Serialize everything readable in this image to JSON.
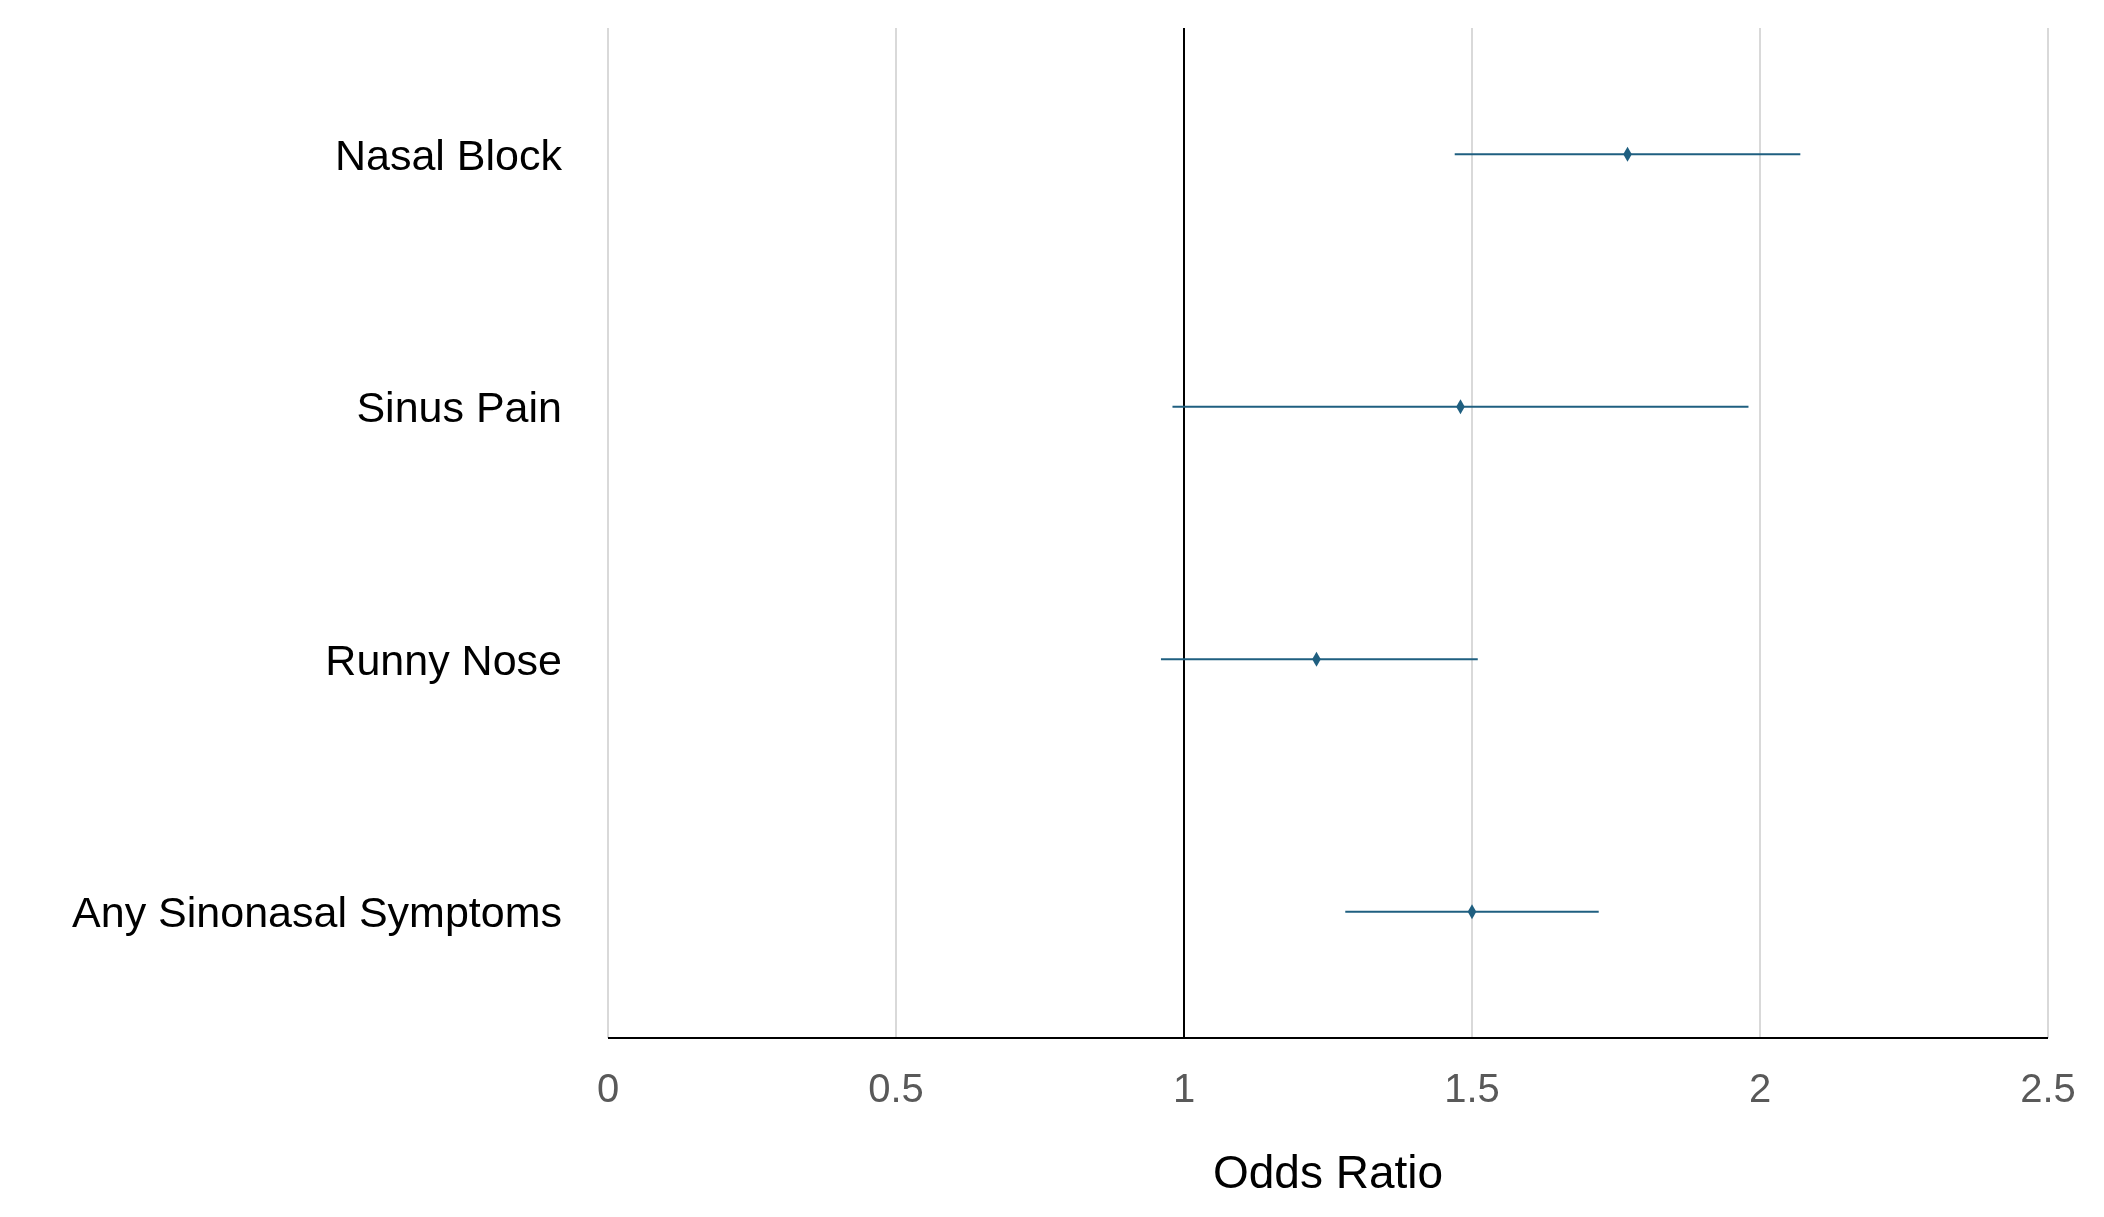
{
  "chart_data": {
    "type": "scatter",
    "orientation": "horizontal",
    "xlabel": "Odds Ratio",
    "categories": [
      "Nasal Block",
      "Sinus Pain",
      "Runny Nose",
      "Any Sinonasal Symptoms"
    ],
    "values": [
      1.77,
      1.48,
      1.23,
      1.5
    ],
    "errors": [
      [
        1.47,
        2.07
      ],
      [
        0.98,
        1.98
      ],
      [
        0.96,
        1.51
      ],
      [
        1.28,
        1.72
      ]
    ],
    "color": "#1f5f80",
    "marker": "diamond",
    "xlim": [
      0,
      2.5
    ],
    "xticks": [
      0,
      0.5,
      1,
      1.5,
      2,
      2.5
    ],
    "grid": "x",
    "ref_lines": [
      {
        "axis": "x",
        "value": 1,
        "color": "#000000"
      }
    ]
  }
}
